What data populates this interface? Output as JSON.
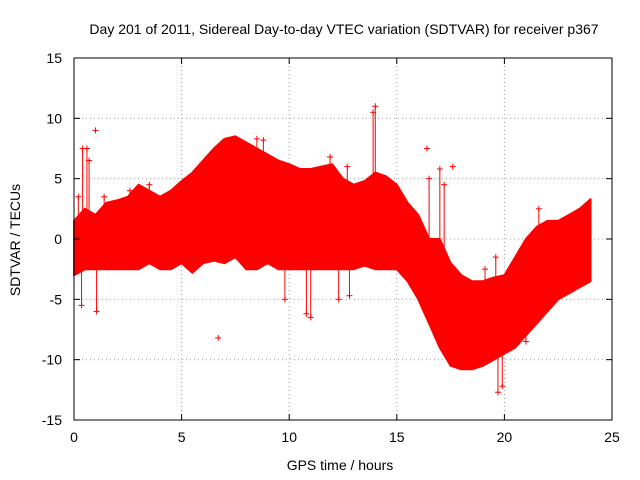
{
  "chart_data": {
    "type": "scatter",
    "title": "Day 201 of 2011, Sidereal Day-to-day VTEC variation (SDTVAR) for receiver p367",
    "xlabel": "GPS time / hours",
    "ylabel": "SDTVAR / TECUs",
    "xlim": [
      0,
      25
    ],
    "ylim": [
      -15,
      15
    ],
    "xticks": [
      0,
      5,
      10,
      15,
      20,
      25
    ],
    "yticks": [
      -15,
      -10,
      -5,
      0,
      5,
      10,
      15
    ],
    "grid": true,
    "marker": "+",
    "series_color": "#ff0000",
    "series": [
      {
        "name": "SDTVAR",
        "band": {
          "x": [
            0.0,
            0.5,
            1.0,
            1.5,
            2.0,
            2.5,
            3.0,
            3.5,
            4.0,
            4.5,
            5.0,
            5.5,
            6.0,
            6.5,
            7.0,
            7.5,
            8.0,
            8.5,
            9.0,
            9.5,
            10.0,
            10.5,
            11.0,
            11.5,
            12.0,
            12.5,
            13.0,
            13.5,
            14.0,
            14.5,
            15.0,
            15.5,
            16.0,
            16.5,
            17.0,
            17.5,
            18.0,
            18.5,
            19.0,
            19.5,
            20.0,
            20.5,
            21.0,
            21.5,
            22.0,
            22.5,
            23.0,
            23.5,
            24.0
          ],
          "upper": [
            1.5,
            2.5,
            2.0,
            3.0,
            3.2,
            3.5,
            4.5,
            4.0,
            3.5,
            4.0,
            4.8,
            5.5,
            6.5,
            7.5,
            8.3,
            8.5,
            8.0,
            7.5,
            7.0,
            6.5,
            6.2,
            5.8,
            5.8,
            6.0,
            6.2,
            5.0,
            4.5,
            4.8,
            5.5,
            5.2,
            4.5,
            3.0,
            2.0,
            0.0,
            0.0,
            -2.0,
            -3.0,
            -3.5,
            -3.5,
            -3.2,
            -3.0,
            -1.5,
            0.0,
            1.0,
            1.5,
            1.5,
            2.0,
            2.5,
            3.3
          ],
          "lower": [
            -3.0,
            -2.5,
            -2.5,
            -2.5,
            -2.5,
            -2.5,
            -2.5,
            -2.0,
            -2.5,
            -2.5,
            -2.0,
            -2.8,
            -2.0,
            -1.8,
            -2.0,
            -1.5,
            -2.5,
            -2.5,
            -2.0,
            -2.5,
            -2.5,
            -2.5,
            -2.5,
            -2.5,
            -2.5,
            -2.5,
            -2.5,
            -2.2,
            -2.5,
            -2.5,
            -2.5,
            -3.5,
            -5.0,
            -7.0,
            -9.0,
            -10.5,
            -10.8,
            -10.8,
            -10.5,
            -10.0,
            -9.5,
            -9.0,
            -8.0,
            -7.0,
            -6.0,
            -5.0,
            -4.5,
            -4.0,
            -3.5
          ]
        },
        "spikes": [
          {
            "x": 0.2,
            "y": 3.5
          },
          {
            "x": 0.35,
            "y": -5.5
          },
          {
            "x": 0.4,
            "y": 7.5
          },
          {
            "x": 0.6,
            "y": 7.5
          },
          {
            "x": 0.7,
            "y": 6.5
          },
          {
            "x": 1.0,
            "y": 9.0
          },
          {
            "x": 1.05,
            "y": -6.0
          },
          {
            "x": 1.4,
            "y": 3.5
          },
          {
            "x": 2.6,
            "y": 4.0
          },
          {
            "x": 3.5,
            "y": 4.5
          },
          {
            "x": 6.7,
            "y": -8.2
          },
          {
            "x": 8.5,
            "y": 8.3
          },
          {
            "x": 8.8,
            "y": 8.2
          },
          {
            "x": 9.8,
            "y": -5.0
          },
          {
            "x": 10.8,
            "y": -6.2
          },
          {
            "x": 11.0,
            "y": -6.5
          },
          {
            "x": 11.9,
            "y": 6.8
          },
          {
            "x": 12.3,
            "y": -5.0
          },
          {
            "x": 12.7,
            "y": 6.0
          },
          {
            "x": 12.8,
            "y": -4.7
          },
          {
            "x": 13.9,
            "y": 10.5
          },
          {
            "x": 14.0,
            "y": 11.0
          },
          {
            "x": 16.4,
            "y": 7.5
          },
          {
            "x": 16.5,
            "y": 5.0
          },
          {
            "x": 17.0,
            "y": 5.8
          },
          {
            "x": 17.2,
            "y": 4.5
          },
          {
            "x": 17.6,
            "y": 6.0
          },
          {
            "x": 17.7,
            "y": -10.0
          },
          {
            "x": 19.1,
            "y": -2.5
          },
          {
            "x": 19.6,
            "y": -1.5
          },
          {
            "x": 19.7,
            "y": -12.7
          },
          {
            "x": 19.9,
            "y": -12.2
          },
          {
            "x": 21.6,
            "y": 2.5
          },
          {
            "x": 21.0,
            "y": -8.5
          }
        ]
      }
    ]
  }
}
